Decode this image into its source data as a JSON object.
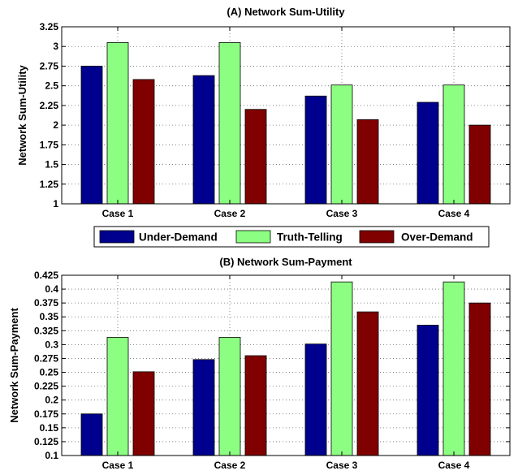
{
  "colors": {
    "under": "#00008f",
    "truth": "#8cff82",
    "over": "#800000"
  },
  "legend": {
    "position": "between charts, center",
    "entries": [
      "Under-Demand",
      "Truth-Telling",
      "Over-Demand"
    ]
  },
  "chart_data": [
    {
      "type": "bar",
      "title": "(A) Network Sum-Utility",
      "xlabel": "",
      "ylabel": "Network Sum-Utility",
      "categories": [
        "Case 1",
        "Case 2",
        "Case 3",
        "Case 4"
      ],
      "ylim": [
        1,
        3.25
      ],
      "yticks": [
        "1",
        "1.25",
        "1.5",
        "1.75",
        "2",
        "2.25",
        "2.5",
        "2.75",
        "3",
        "3.25"
      ],
      "grid": true,
      "series": [
        {
          "name": "Under-Demand",
          "values": [
            2.75,
            2.63,
            2.37,
            2.29
          ]
        },
        {
          "name": "Truth-Telling",
          "values": [
            3.05,
            3.05,
            2.51,
            2.51
          ]
        },
        {
          "name": "Over-Demand",
          "values": [
            2.58,
            2.2,
            2.07,
            2.0
          ]
        }
      ]
    },
    {
      "type": "bar",
      "title": "(B) Network Sum-Payment",
      "xlabel": "",
      "ylabel": "Network Sum-Payment",
      "categories": [
        "Case 1",
        "Case 2",
        "Case 3",
        "Case 4"
      ],
      "ylim": [
        0.1,
        0.425
      ],
      "yticks": [
        "0.1",
        "0.125",
        "0.15",
        "0.175",
        "0.2",
        "0.225",
        "0.25",
        "0.275",
        "0.3",
        "0.325",
        "0.35",
        "0.375",
        "0.4",
        "0.425"
      ],
      "grid": true,
      "series": [
        {
          "name": "Under-Demand",
          "values": [
            0.175,
            0.273,
            0.301,
            0.335
          ]
        },
        {
          "name": "Truth-Telling",
          "values": [
            0.313,
            0.313,
            0.413,
            0.413
          ]
        },
        {
          "name": "Over-Demand",
          "values": [
            0.251,
            0.28,
            0.359,
            0.375
          ]
        }
      ]
    }
  ]
}
